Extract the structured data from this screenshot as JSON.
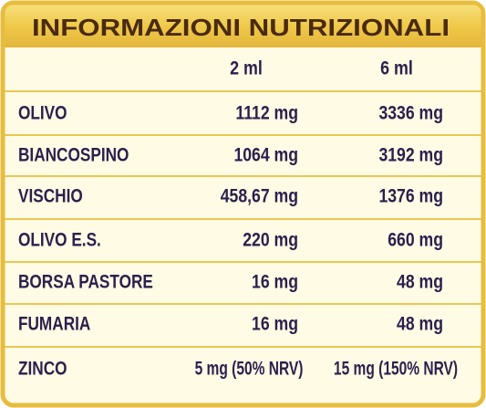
{
  "header": {
    "title": "INFORMAZIONI NUTRIZIONALI"
  },
  "table": {
    "column_headers": [
      "2 ml",
      "6 ml"
    ],
    "rows": [
      [
        "OLIVO",
        "1112 mg",
        "3336 mg"
      ],
      [
        "BIANCOSPINO",
        "1064 mg",
        "3192 mg"
      ],
      [
        "VISCHIO",
        "458,67 mg",
        "1376 mg"
      ],
      [
        "OLIVO E.S.",
        "220 mg",
        "660 mg"
      ],
      [
        "BORSA PASTORE",
        "16 mg",
        "48 mg"
      ],
      [
        "FUMARIA",
        "16 mg",
        "48 mg"
      ],
      [
        "ZINCO",
        "5 mg (50% NRV)",
        "15 mg (150% NRV)"
      ]
    ]
  }
}
